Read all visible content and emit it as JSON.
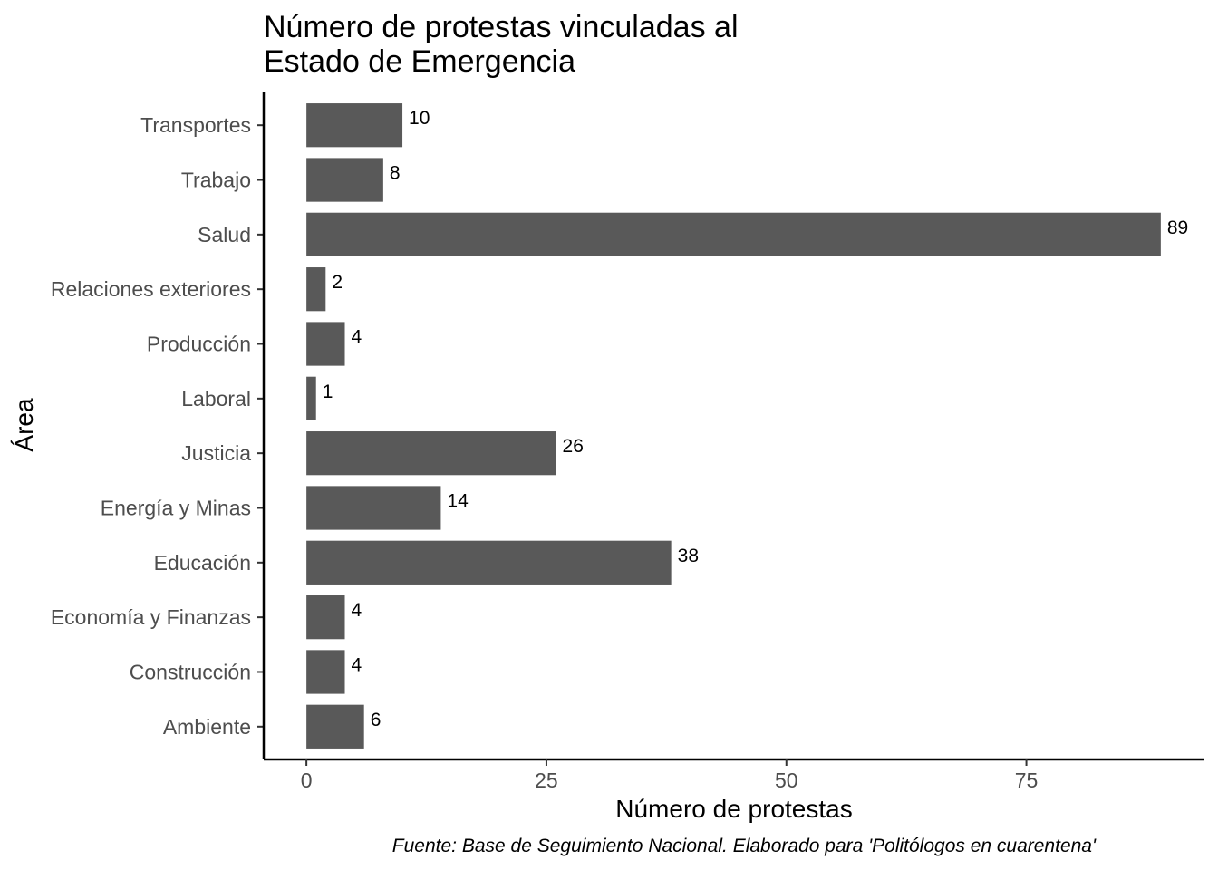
{
  "chart_data": {
    "type": "bar",
    "orientation": "horizontal",
    "title_lines": [
      "Número de protestas vinculadas al",
      "Estado de Emergencia"
    ],
    "xlabel": "Número de protestas",
    "ylabel": "Área",
    "caption": "Fuente: Base de Seguimiento Nacional. Elaborado para 'Politólogos en cuarentena'",
    "categories": [
      "Transportes",
      "Trabajo",
      "Salud",
      "Relaciones exteriores",
      "Producción",
      "Laboral",
      "Justicia",
      "Energía y Minas",
      "Educación",
      "Economía y Finanzas",
      "Construcción",
      "Ambiente"
    ],
    "values": [
      10,
      8,
      89,
      2,
      4,
      1,
      26,
      14,
      38,
      4,
      4,
      6
    ],
    "x_ticks": [
      0,
      25,
      50,
      75
    ],
    "xlim": [
      -4.45,
      93.45
    ],
    "grid": false,
    "legend": "none",
    "bar_color": "#595959"
  }
}
